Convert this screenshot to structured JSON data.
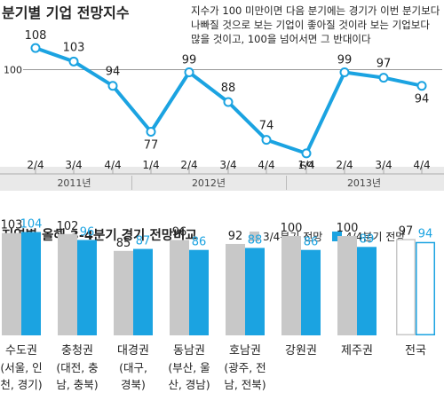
{
  "chart_data": [
    {
      "type": "line",
      "title": "분기별 기업 전망지수",
      "annotation": "지수가 100 미만이면 다음 분기에는 경기가 이번 분기보다 나빠질 것으로 보는 기업이 좋아질 것이라 보는 기업보다 많을 것이고, 100을 넘어서면 그 반대이다",
      "reference_line": {
        "value": 100,
        "label": "100"
      },
      "categories": [
        "2/4",
        "3/4",
        "4/4",
        "1/4",
        "2/4",
        "3/4",
        "4/4",
        "1/4",
        "2/4",
        "3/4",
        "4/4"
      ],
      "year_groups": [
        {
          "label": "2011년",
          "count": 3
        },
        {
          "label": "2012년",
          "count": 4
        },
        {
          "label": "2013년",
          "count": 4
        }
      ],
      "values": [
        108,
        103,
        94,
        77,
        99,
        88,
        74,
        69,
        99,
        97,
        94
      ],
      "ylim": [
        66,
        110
      ],
      "grid": false,
      "line_color": "#1ba3e1"
    },
    {
      "type": "bar",
      "title": "지역별 올해 3-4분기 경기 전망비교",
      "legend_position": "top-right",
      "series": [
        {
          "name": "3/4분기 전망",
          "values": [
            103,
            102,
            85,
            96,
            92,
            100,
            100,
            97
          ],
          "color": "#c8c8c8"
        },
        {
          "name": "4/4분기 전망",
          "values": [
            104,
            96,
            87,
            86,
            88,
            86,
            89,
            94
          ],
          "color": "#1ba3e1"
        }
      ],
      "categories": [
        {
          "name": "수도권",
          "detail": [
            "(서울, 인",
            "천, 경기)"
          ]
        },
        {
          "name": "충청권",
          "detail": [
            "(대전, 충",
            "남, 충북)"
          ]
        },
        {
          "name": "대경권",
          "detail": [
            "(대구,",
            "경북)"
          ]
        },
        {
          "name": "동남권",
          "detail": [
            "(부산, 울",
            "산, 경남)"
          ]
        },
        {
          "name": "호남권",
          "detail": [
            "(광주, 전",
            "남, 전북)"
          ]
        },
        {
          "name": "강원권",
          "detail": []
        },
        {
          "name": "제주권",
          "detail": []
        },
        {
          "name": "전국",
          "detail": []
        }
      ],
      "outlined_category": "전국",
      "ylim": [
        0,
        104
      ]
    }
  ]
}
